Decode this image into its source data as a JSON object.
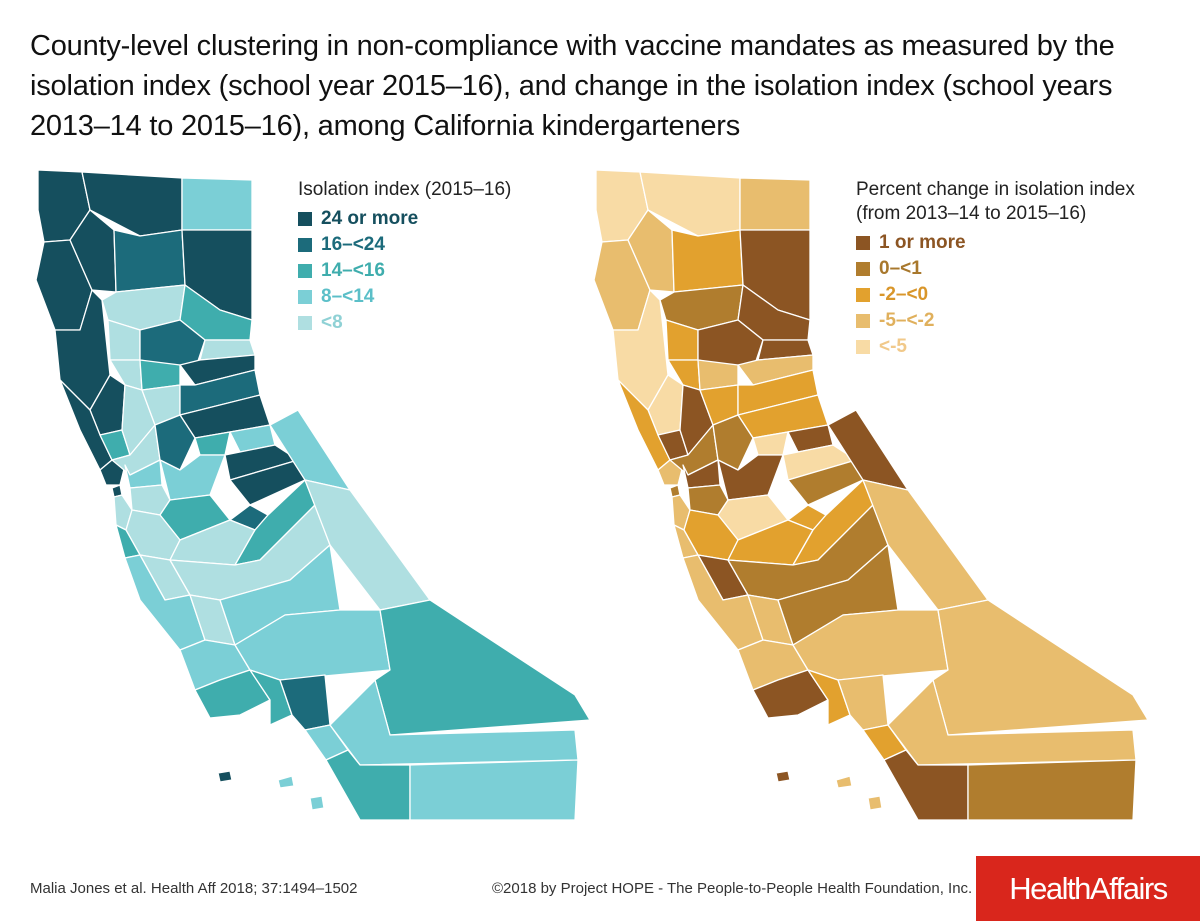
{
  "title": "County-level clustering in non-compliance with vaccine mandates as measured by the isolation index (school year 2015–16), and change in the isolation index (school years 2013–14 to 2015–16), among California kindergarteners",
  "maps": {
    "isolation": {
      "legend_title": "Isolation index (2015–16)",
      "legend": [
        {
          "label": "24 or more",
          "color": "#154f5e"
        },
        {
          "label": "16–<24",
          "color": "#1c6b7b"
        },
        {
          "label": "14–<16",
          "color": "#3fadad"
        },
        {
          "label": "8–<14",
          "color": "#7bcfd6"
        },
        {
          "label": "<8",
          "color": "#afdfe1"
        }
      ]
    },
    "change": {
      "legend_title": "Percent change in isolation index\n(from 2013–14 to 2015–16)",
      "legend": [
        {
          "label": "1 or more",
          "color": "#8c5523"
        },
        {
          "label": "0–<1",
          "color": "#b07d2e"
        },
        {
          "label": "-2–<0",
          "color": "#e2a12e"
        },
        {
          "label": "-5–<-2",
          "color": "#e8bd6e"
        },
        {
          "label": "<-5",
          "color": "#f8dba5"
        }
      ]
    }
  },
  "footer": {
    "citation": "Malia Jones et al. Health Aff 2018; 37:1494–1502",
    "copyright": "©2018 by Project HOPE - The People-to-People Health Foundation, Inc.",
    "logo": "HealthAffairs"
  }
}
